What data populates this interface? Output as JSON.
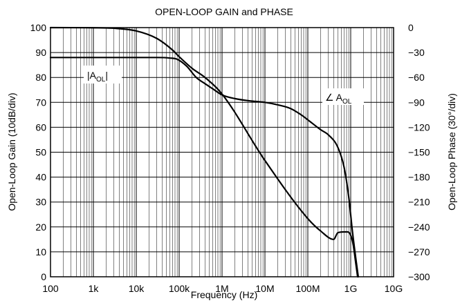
{
  "chart_data": {
    "type": "line",
    "title": "OPEN-LOOP GAIN and PHASE",
    "xlabel": "Frequency (Hz)",
    "ylabel": "Open-Loop Gain (10dB/div)",
    "y2label": "Open-Loop Phase (30°/div)",
    "x_scale": "log",
    "xlim": [
      100,
      10000000000
    ],
    "ylim": [
      0,
      100
    ],
    "y2lim": [
      -300,
      0
    ],
    "grid": true,
    "x_ticks": [
      {
        "value": 100,
        "label": "100"
      },
      {
        "value": 1000,
        "label": "1k"
      },
      {
        "value": 10000,
        "label": "10k"
      },
      {
        "value": 100000,
        "label": "100k"
      },
      {
        "value": 1000000,
        "label": "1M"
      },
      {
        "value": 10000000,
        "label": "10M"
      },
      {
        "value": 100000000,
        "label": "100M"
      },
      {
        "value": 1000000000,
        "label": "1G"
      },
      {
        "value": 10000000000,
        "label": "10G"
      }
    ],
    "y_ticks": [
      0,
      10,
      20,
      30,
      40,
      50,
      60,
      70,
      80,
      90,
      100
    ],
    "y2_ticks": [
      {
        "value": 0,
        "label": "0"
      },
      {
        "value": -30,
        "label": "−30"
      },
      {
        "value": -60,
        "label": "−60"
      },
      {
        "value": -90,
        "label": "−90"
      },
      {
        "value": -120,
        "label": "−120"
      },
      {
        "value": -150,
        "label": "−150"
      },
      {
        "value": -180,
        "label": "−180"
      },
      {
        "value": -210,
        "label": "−210"
      },
      {
        "value": -240,
        "label": "−240"
      },
      {
        "value": -270,
        "label": "−270"
      },
      {
        "value": -300,
        "label": "−300"
      }
    ],
    "series": [
      {
        "axis": "left",
        "label_main": "|A",
        "label_sub": "OL",
        "label_end": "|",
        "points": [
          [
            100,
            88
          ],
          [
            1000,
            88
          ],
          [
            10000,
            88
          ],
          [
            30000,
            88
          ],
          [
            60000,
            87.8
          ],
          [
            90000,
            87.3
          ],
          [
            150000,
            84.5
          ],
          [
            250000,
            80
          ],
          [
            400000,
            77.5
          ],
          [
            600000,
            75.5
          ],
          [
            1000000,
            73
          ],
          [
            2000000,
            71.5
          ],
          [
            5000000,
            70.5
          ],
          [
            10000000,
            70
          ],
          [
            20000000,
            69
          ],
          [
            40000000,
            67.5
          ],
          [
            70000000,
            65
          ],
          [
            100000000,
            63
          ],
          [
            200000000,
            59
          ],
          [
            300000000,
            57
          ],
          [
            500000000,
            52
          ],
          [
            700000000,
            44
          ],
          [
            900000000,
            32
          ],
          [
            1100000000,
            18
          ],
          [
            1300000000,
            8
          ],
          [
            1500000000,
            0
          ]
        ]
      },
      {
        "axis": "right",
        "label_main": "∠ A",
        "label_sub": "OL",
        "label_end": "",
        "points": [
          [
            100,
            0
          ],
          [
            1000,
            -0.2
          ],
          [
            3000,
            -0.8
          ],
          [
            10000,
            -4
          ],
          [
            30000,
            -13
          ],
          [
            70000,
            -27
          ],
          [
            100000,
            -35
          ],
          [
            200000,
            -49
          ],
          [
            400000,
            -60
          ],
          [
            1000000,
            -80
          ],
          [
            10000000,
            -160
          ],
          [
            100000000,
            -230
          ],
          [
            200000000,
            -245
          ],
          [
            400000000,
            -255
          ],
          [
            500000000,
            -247
          ],
          [
            700000000,
            -246
          ],
          [
            850000000,
            -246
          ],
          [
            1000000000,
            -250
          ],
          [
            1150000000,
            -262
          ],
          [
            1300000000,
            -282
          ],
          [
            1450000000,
            -300
          ]
        ]
      }
    ]
  }
}
